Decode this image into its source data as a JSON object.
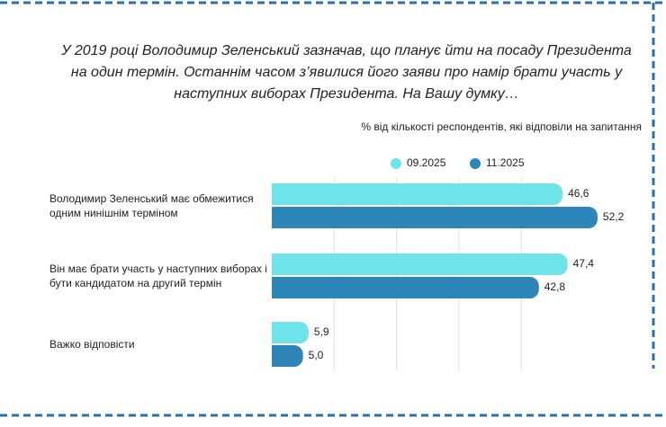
{
  "chart_data": {
    "type": "hbar",
    "title": "У 2019 році Володимир Зеленський зазначав, що планує йти на посаду Президента на один термін. Останнім часом з’явилися його заяви про намір брати участь у наступних виборах Президента. На Вашу думку…",
    "subtitle": "% від кількості респондентів, які відповіли на запитання",
    "categories": [
      "Володимир Зеленський має обмежитися одним нинішнім терміном",
      "Він має брати участь у наступних виборах і бути кандидатом на другий термін",
      "Важко відповісти"
    ],
    "series": [
      {
        "name": "09.2025",
        "color": "#6ee3ea",
        "values": [
          46.6,
          47.4,
          5.9
        ],
        "value_labels": [
          "46,6",
          "47,4",
          "5,9"
        ]
      },
      {
        "name": "11.2025",
        "color": "#2e86b8",
        "values": [
          52.2,
          42.8,
          5.0
        ],
        "value_labels": [
          "52,2",
          "42,8",
          "5,0"
        ]
      }
    ],
    "xlim": [
      0,
      60
    ],
    "xticks": [
      10,
      20,
      30,
      40
    ],
    "grid": true
  }
}
